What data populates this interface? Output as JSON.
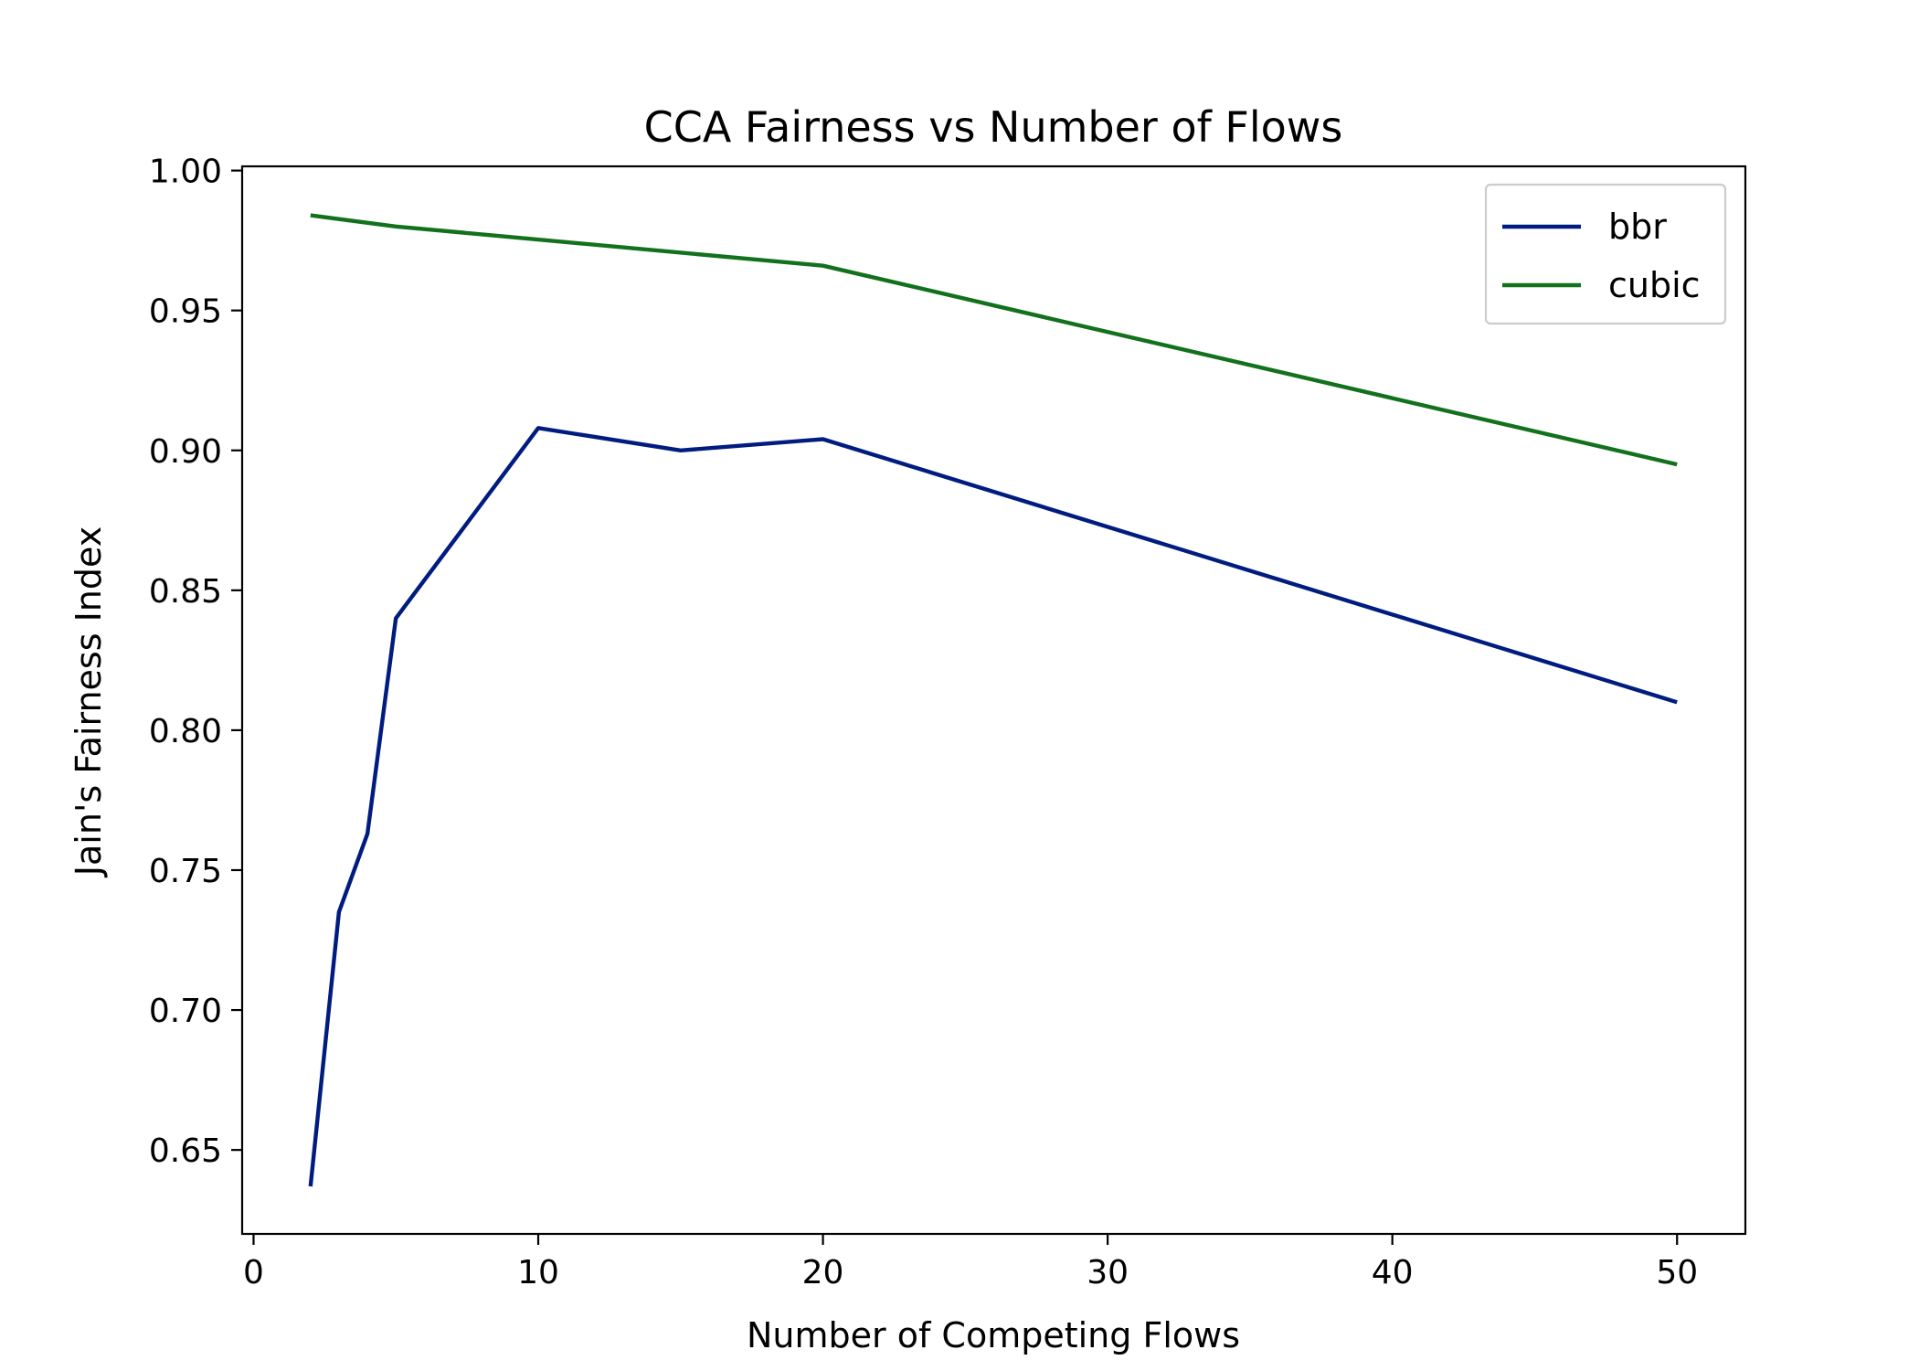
{
  "chart_data": {
    "type": "line",
    "title": "CCA Fairness vs Number of Flows",
    "xlabel": "Number of Competing Flows",
    "ylabel": "Jain's Fairness Index",
    "xlim": [
      -0.4,
      52.4
    ],
    "ylim": [
      0.62,
      1.0015
    ],
    "xticks": [
      0,
      10,
      20,
      30,
      40,
      50
    ],
    "xtick_labels": [
      "0",
      "10",
      "20",
      "30",
      "40",
      "50"
    ],
    "yticks": [
      0.65,
      0.7,
      0.75,
      0.8,
      0.85,
      0.9,
      0.95,
      1.0
    ],
    "ytick_labels": [
      "0.65",
      "0.70",
      "0.75",
      "0.80",
      "0.85",
      "0.90",
      "0.95",
      "1.00"
    ],
    "grid": false,
    "legend_position": "top-right",
    "series": [
      {
        "name": "bbr",
        "color": "#001c7f",
        "x": [
          2,
          3,
          4,
          5,
          10,
          15,
          20,
          50
        ],
        "y": [
          0.637,
          0.735,
          0.763,
          0.84,
          0.908,
          0.9,
          0.904,
          0.81
        ]
      },
      {
        "name": "cubic",
        "color": "#12711c",
        "x": [
          2,
          5,
          20,
          50
        ],
        "y": [
          0.984,
          0.98,
          0.966,
          0.895
        ]
      }
    ]
  }
}
